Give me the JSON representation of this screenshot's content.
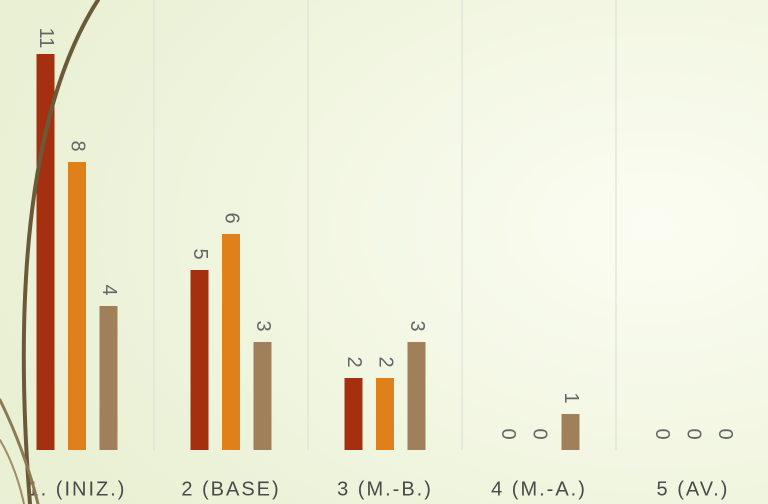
{
  "chart_data": {
    "type": "bar",
    "categories": [
      "1. (INIZ.)",
      "2 (BASE)",
      "3 (M.-B.)",
      "4 (M.-A.)",
      "5 (AV.)"
    ],
    "series": [
      {
        "color": "#a5300f",
        "values": [
          11,
          5,
          2,
          0,
          0
        ]
      },
      {
        "color": "#e0801a",
        "values": [
          8,
          6,
          2,
          0,
          0
        ]
      },
      {
        "color": "#a0805a",
        "values": [
          4,
          3,
          3,
          1,
          0
        ]
      }
    ],
    "ylim": [
      0,
      12.5
    ]
  }
}
